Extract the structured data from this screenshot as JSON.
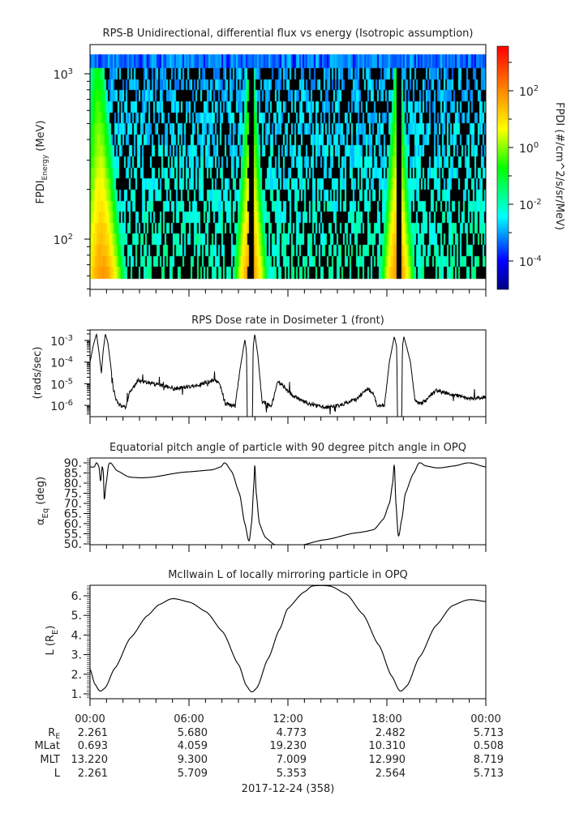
{
  "time_axis": {
    "xlim_hours": [
      0,
      24
    ],
    "major_ticks_hours": [
      0,
      6,
      12,
      18,
      24
    ],
    "minor_tick_step_hours": 1
  },
  "chart_data": [
    {
      "id": "spectrogram",
      "type": "heatmap",
      "title": "RPS-B  Unidirectional, differential flux vs energy (Isotropic assumption)",
      "ylabel": {
        "main": "FPDI",
        "sub": "Energy",
        "unit": " (MeV)"
      },
      "yscale": "log",
      "ylim": [
        50,
        1500
      ],
      "data_energy_range": [
        58,
        1310
      ],
      "yticks": [
        {
          "value": 100,
          "base": "10",
          "exp": "2"
        },
        {
          "value": 1000,
          "base": "10",
          "exp": "3"
        }
      ],
      "bright_band_centers_hours": [
        0.7,
        9.7,
        18.6
      ],
      "data_gaps_hours": [
        9.75,
        18.7
      ],
      "colorbar": {
        "label": "FPDI (#/cm^2/s/sr/MeV)",
        "scale": "log",
        "log_range": [
          -5.0,
          3.57
        ],
        "labeled_ticks": [
          {
            "value": 100,
            "base": "10",
            "exp": "2"
          },
          {
            "value": 1,
            "base": "10",
            "exp": "0"
          },
          {
            "value": 0.01,
            "base": "10",
            "exp": "-2"
          },
          {
            "value": 0.0001,
            "base": "10",
            "exp": "-4"
          }
        ],
        "minor_ticks_log": [
          3,
          1,
          -1,
          -3
        ]
      }
    },
    {
      "id": "dose-rate",
      "type": "line",
      "title": "RPS  Dose rate in Dosimeter 1 (front)",
      "ylabel": "(rads/sec)",
      "yscale": "log",
      "ylim": [
        3e-07,
        0.0031
      ],
      "yticks": [
        {
          "value": 0.001,
          "base": "10",
          "exp": "-3"
        },
        {
          "value": 0.0001,
          "base": "10",
          "exp": "-4"
        },
        {
          "value": 1e-05,
          "base": "10",
          "exp": "-5"
        },
        {
          "value": 1e-06,
          "base": "10",
          "exp": "-6"
        }
      ],
      "points": [
        [
          0,
          0.0001
        ],
        [
          0.2,
          0.0006
        ],
        [
          0.39,
          0.002
        ],
        [
          0.54,
          0.0003
        ],
        [
          0.69,
          3e-05
        ],
        [
          0.79,
          0.0003
        ],
        [
          0.93,
          0.002
        ],
        [
          1.08,
          0.0008
        ],
        [
          1.23,
          0.0001
        ],
        [
          1.43,
          5e-06
        ],
        [
          1.67,
          1.2e-06
        ],
        [
          1.92,
          9e-07
        ],
        [
          2.16,
          8e-07
        ],
        [
          2.41,
          4e-06
        ],
        [
          2.9,
          1.4e-05
        ],
        [
          3.89,
          1e-05
        ],
        [
          5.12,
          6e-06
        ],
        [
          6.35,
          8e-06
        ],
        [
          7.57,
          1.5e-05
        ],
        [
          7.92,
          8e-06
        ],
        [
          8.21,
          1.2e-06
        ],
        [
          8.8,
          9e-07
        ],
        [
          9.1,
          5e-05
        ],
        [
          9.39,
          0.0011
        ],
        [
          9.49,
          0.0003
        ],
        [
          9.54,
          1e-07
        ],
        [
          9.84,
          1e-07
        ],
        [
          9.89,
          0.0005
        ],
        [
          9.99,
          0.002
        ],
        [
          10.18,
          0.0002
        ],
        [
          10.43,
          1.5e-06
        ],
        [
          11.02,
          1e-06
        ],
        [
          11.36,
          1.4e-05
        ],
        [
          12.25,
          3e-06
        ],
        [
          13.23,
          1.2e-06
        ],
        [
          14.2,
          8e-07
        ],
        [
          15.2,
          1e-06
        ],
        [
          16.2,
          2e-06
        ],
        [
          16.77,
          6e-06
        ],
        [
          17.17,
          4e-06
        ],
        [
          17.4,
          1e-06
        ],
        [
          17.86,
          1e-06
        ],
        [
          18.15,
          0.0001
        ],
        [
          18.45,
          0.0015
        ],
        [
          18.6,
          0.0005
        ],
        [
          18.65,
          1e-07
        ],
        [
          18.9,
          1e-07
        ],
        [
          18.94,
          0.0005
        ],
        [
          19.03,
          0.0015
        ],
        [
          19.2,
          0.0005
        ],
        [
          19.43,
          0.0001
        ],
        [
          19.72,
          1.5e-06
        ],
        [
          20.12,
          1.2e-06
        ],
        [
          21,
          5e-06
        ],
        [
          22.1,
          3e-06
        ],
        [
          23.07,
          2e-06
        ],
        [
          24,
          2.5e-06
        ]
      ]
    },
    {
      "id": "pitch-angle",
      "type": "line",
      "title": "Equatorial pitch angle of particle with 90 degree pitch angle in OPQ",
      "ylabel": {
        "main": "α",
        "sub": "Eq",
        "unit": " (deg)"
      },
      "ylim": [
        49.6,
        92.4
      ],
      "yticks": [
        "50.",
        "55.",
        "60.",
        "65.",
        "70.",
        "75.",
        "80.",
        "85.",
        "90."
      ],
      "ytick_values": [
        50,
        55,
        60,
        65,
        70,
        75,
        80,
        85,
        90
      ],
      "points": [
        [
          0,
          88
        ],
        [
          0.25,
          88
        ],
        [
          0.39,
          90
        ],
        [
          0.54,
          88
        ],
        [
          0.64,
          81
        ],
        [
          0.74,
          88
        ],
        [
          0.81,
          85
        ],
        [
          0.86,
          72
        ],
        [
          0.98,
          80
        ],
        [
          1.13,
          89
        ],
        [
          1.23,
          90
        ],
        [
          1.67,
          86
        ],
        [
          2.41,
          83
        ],
        [
          3.39,
          82.7
        ],
        [
          5.85,
          85.5
        ],
        [
          7.33,
          86.5
        ],
        [
          7.92,
          88
        ],
        [
          8.17,
          90
        ],
        [
          8.56,
          86
        ],
        [
          9.05,
          75
        ],
        [
          9.39,
          60
        ],
        [
          9.64,
          51.5
        ],
        [
          9.79,
          60
        ],
        [
          9.94,
          80
        ],
        [
          9.99,
          89
        ],
        [
          10.08,
          75
        ],
        [
          10.28,
          60
        ],
        [
          10.67,
          53
        ],
        [
          11.26,
          49.5
        ],
        [
          12.49,
          49
        ],
        [
          14.2,
          52
        ],
        [
          16.18,
          55.5
        ],
        [
          17.17,
          57
        ],
        [
          17.76,
          62
        ],
        [
          18.15,
          70
        ],
        [
          18.35,
          80
        ],
        [
          18.45,
          89
        ],
        [
          18.55,
          70
        ],
        [
          18.7,
          54
        ],
        [
          18.9,
          62
        ],
        [
          19.13,
          75
        ],
        [
          19.63,
          85
        ],
        [
          19.97,
          90
        ],
        [
          20.36,
          88.5
        ],
        [
          21.1,
          87.5
        ],
        [
          22.09,
          88.5
        ],
        [
          22.97,
          90
        ],
        [
          24,
          88
        ]
      ]
    },
    {
      "id": "mcilwain-l",
      "type": "line",
      "title": "McIlwain L of locally mirroring particle in OPQ",
      "ylabel": {
        "main": "L (R",
        "sub": "E",
        "unit": ")"
      },
      "ylim": [
        0.75,
        6.54
      ],
      "yticks": [
        "1.",
        "2.",
        "3.",
        "4.",
        "5.",
        "6."
      ],
      "ytick_values": [
        1,
        2,
        3,
        4,
        5,
        6
      ],
      "points": [
        [
          0,
          2.26
        ],
        [
          0.3,
          1.5
        ],
        [
          0.6,
          1.15
        ],
        [
          0.9,
          1.3
        ],
        [
          1.5,
          2.3
        ],
        [
          2.5,
          3.9
        ],
        [
          3.5,
          5.0
        ],
        [
          4.2,
          5.55
        ],
        [
          5.0,
          5.85
        ],
        [
          6.0,
          5.68
        ],
        [
          7.0,
          5.2
        ],
        [
          8.0,
          4.2
        ],
        [
          9.0,
          2.5
        ],
        [
          9.5,
          1.4
        ],
        [
          9.8,
          1.1
        ],
        [
          10.1,
          1.3
        ],
        [
          10.8,
          2.8
        ],
        [
          11.5,
          4.3
        ],
        [
          12.0,
          5.35
        ],
        [
          13.0,
          6.2
        ],
        [
          13.5,
          6.5
        ],
        [
          14.5,
          6.5
        ],
        [
          15.5,
          6.1
        ],
        [
          16.5,
          5.1
        ],
        [
          17.5,
          3.5
        ],
        [
          18.3,
          1.9
        ],
        [
          18.8,
          1.15
        ],
        [
          19.2,
          1.4
        ],
        [
          20,
          2.9
        ],
        [
          21,
          4.5
        ],
        [
          22,
          5.5
        ],
        [
          23,
          5.8
        ],
        [
          24,
          5.71
        ]
      ]
    }
  ],
  "ephemeris": {
    "times": [
      "00:00",
      "06:00",
      "12:00",
      "18:00",
      "00:00"
    ],
    "rows": [
      {
        "label": "R",
        "sub": "E",
        "values": [
          "2.261",
          "5.680",
          "4.773",
          "2.482",
          "5.713"
        ]
      },
      {
        "label": "MLat",
        "sub": "",
        "values": [
          "0.693",
          "4.059",
          "19.230",
          "10.310",
          "0.508"
        ]
      },
      {
        "label": "MLT",
        "sub": "",
        "values": [
          "13.220",
          "9.300",
          "7.009",
          "12.990",
          "8.719"
        ]
      },
      {
        "label": "L",
        "sub": "",
        "values": [
          "2.261",
          "5.709",
          "5.353",
          "2.564",
          "5.713"
        ]
      }
    ],
    "date": "2017-12-24 (358)"
  }
}
